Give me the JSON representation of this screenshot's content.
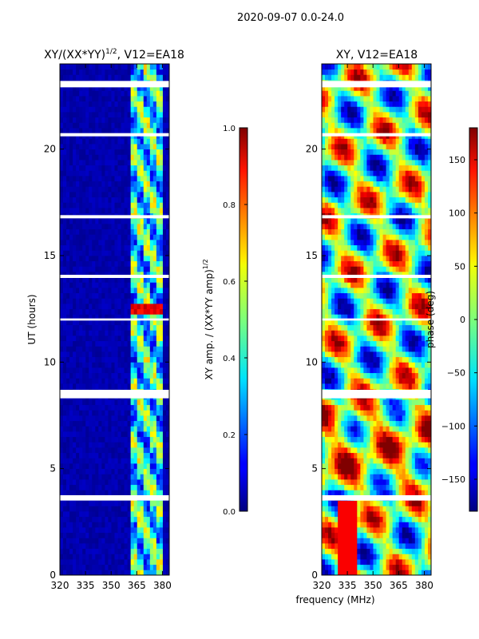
{
  "figure": {
    "suptitle": "2020-09-07 0.0-24.0",
    "shared_xlabel": "frequency (MHz)"
  },
  "chart_data": [
    {
      "type": "heatmap",
      "title_main": "XY/(XX*YY)",
      "title_exp": "1/2",
      "title_suffix": ", V12=EA18",
      "ylabel": "UT (hours)",
      "xlim": [
        320,
        384
      ],
      "ylim": [
        0,
        24
      ],
      "xticks": [
        320,
        335,
        350,
        365,
        380
      ],
      "yticks": [
        0,
        5,
        10,
        15,
        20
      ],
      "colorscale": "jet",
      "data_description_rows": "active channel band ~361-381 MHz, masked gaps near 3.6, 8.5, 14.0, 23.0 h",
      "active_band": [
        361,
        381
      ],
      "gaps": [
        [
          3.5,
          3.75
        ],
        [
          8.3,
          8.7
        ],
        [
          13.95,
          14.1
        ],
        [
          22.9,
          23.2
        ],
        [
          20.6,
          20.75
        ],
        [
          16.75,
          16.9
        ],
        [
          11.95,
          12.05
        ]
      ],
      "colorbar": {
        "label_main": "XY amp. / (XX*YY amp)",
        "label_exp": "1/2",
        "range": [
          0.0,
          1.0
        ],
        "ticks": [
          "0.0",
          "0.2",
          "0.4",
          "0.6",
          "0.8",
          "1.0"
        ],
        "tick_values": [
          0.0,
          0.2,
          0.4,
          0.6,
          0.8,
          1.0
        ]
      }
    },
    {
      "type": "heatmap",
      "title": "XY, V12=EA18",
      "xlim": [
        320,
        384
      ],
      "ylim": [
        0,
        24
      ],
      "xticks": [
        320,
        335,
        350,
        365,
        380
      ],
      "yticks": [
        0,
        5,
        10,
        15,
        20
      ],
      "colorscale": "jet",
      "gaps": [
        [
          3.5,
          3.75
        ],
        [
          8.3,
          8.7
        ],
        [
          13.95,
          14.1
        ],
        [
          22.9,
          23.2
        ],
        [
          20.6,
          20.75
        ],
        [
          16.75,
          16.9
        ],
        [
          11.95,
          12.05
        ]
      ],
      "colorbar": {
        "label": "phase (deg)",
        "range": [
          -180,
          180
        ],
        "ticks": [
          "−150",
          "−100",
          "−50",
          "0",
          "50",
          "100",
          "150"
        ],
        "tick_values": [
          -150,
          -100,
          -50,
          0,
          50,
          100,
          150
        ]
      }
    }
  ]
}
